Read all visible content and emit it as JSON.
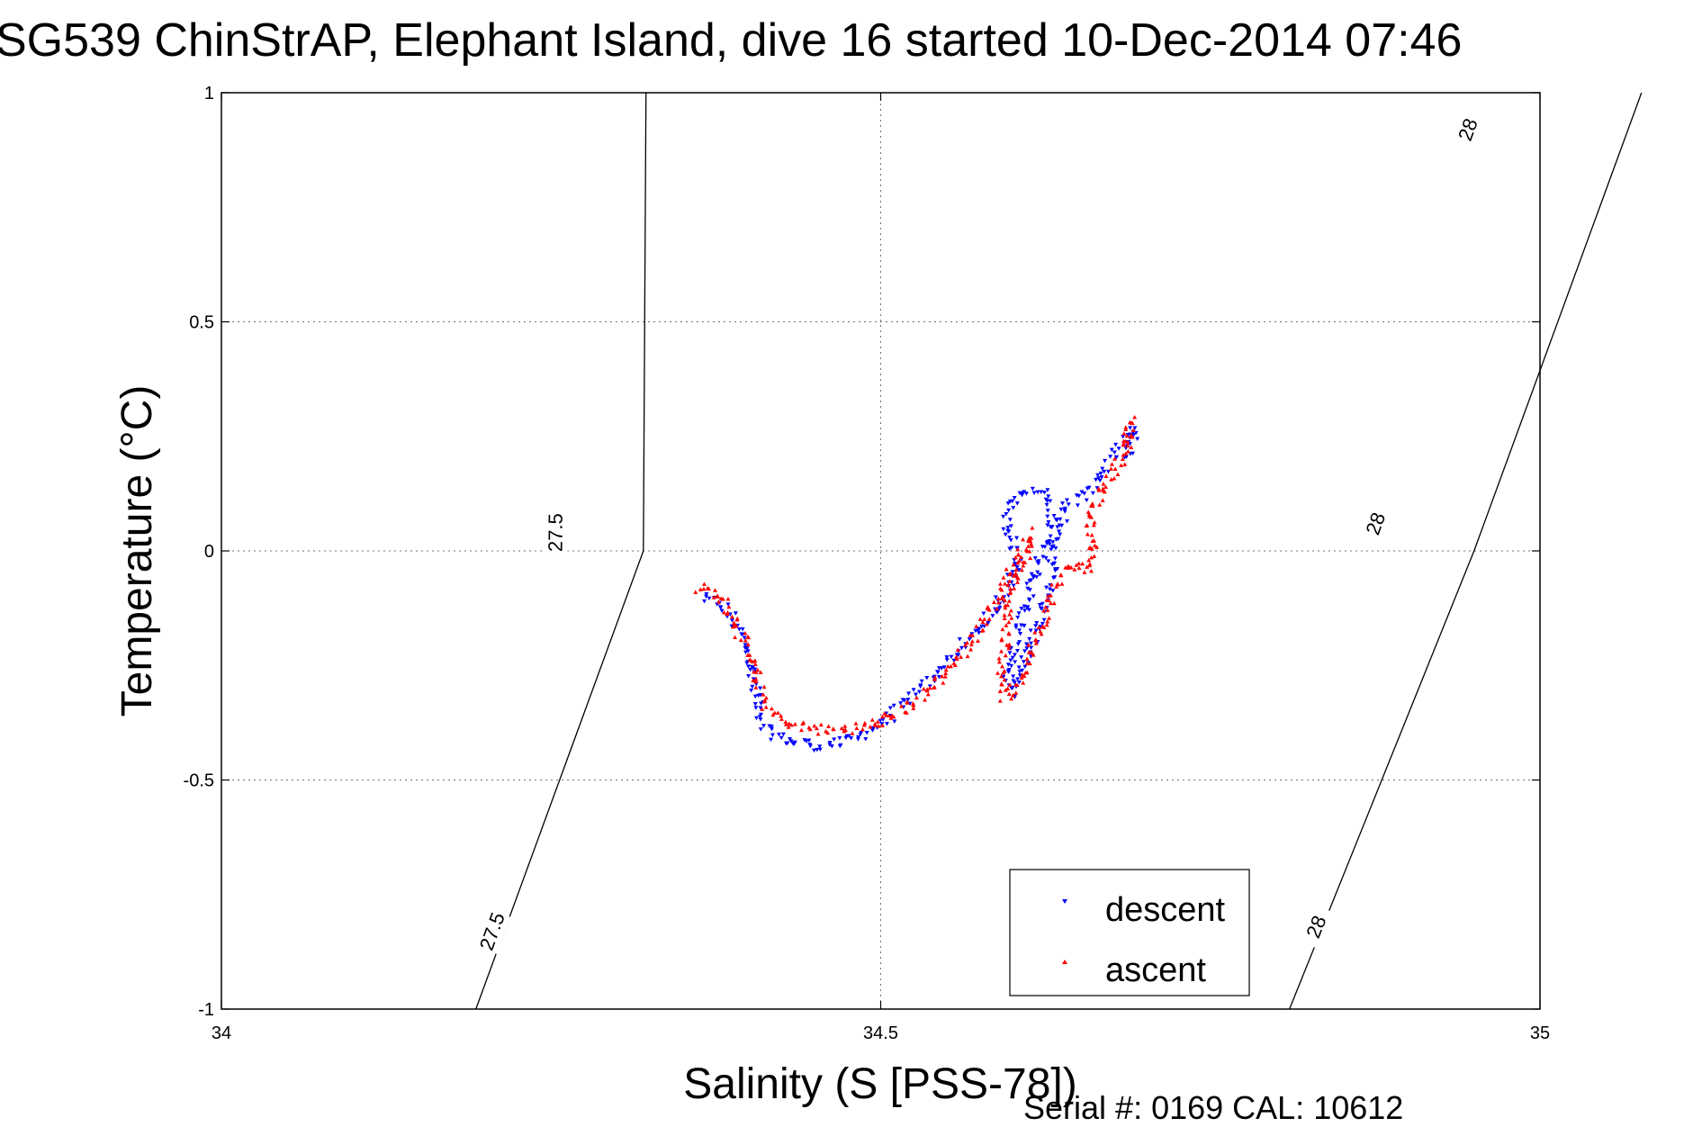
{
  "chart_data": {
    "type": "scatter",
    "title": "SG539 ChinStrAP, Elephant Island, dive 16 started 10-Dec-2014 07:46",
    "xlabel": "Salinity (S [PSS-78])",
    "ylabel": "Temperature (°C)",
    "xlim": [
      34,
      35
    ],
    "ylim": [
      -1,
      1
    ],
    "xticks": [
      "34",
      "34.5",
      "35"
    ],
    "yticks": [
      "-1",
      "-0.5",
      "0",
      "0.5",
      "1"
    ],
    "grid": true,
    "legend": "bottom-right",
    "footer": "Serial #: 0169 CAL: 10612",
    "contours": [
      {
        "label": "27.5",
        "points": [
          [
            34.193,
            -1.0
          ],
          [
            34.32,
            0.0
          ],
          [
            34.322,
            1.0
          ]
        ],
        "label_positions": [
          [
            34.205,
            -0.83
          ],
          [
            34.253,
            0.04
          ]
        ]
      },
      {
        "label": "28",
        "points": [
          [
            34.81,
            -1.0
          ],
          [
            34.95,
            0.0
          ],
          [
            35.077,
            1.0
          ]
        ],
        "label_positions": [
          [
            34.83,
            -0.82
          ],
          [
            34.875,
            0.06
          ],
          [
            34.945,
            0.92
          ]
        ]
      }
    ],
    "series": [
      {
        "name": "descent",
        "color": "#0000ff",
        "marker": "triangle-down",
        "path": [
          [
            34.365,
            -0.105
          ],
          [
            34.372,
            -0.11
          ],
          [
            34.38,
            -0.12
          ],
          [
            34.388,
            -0.15
          ],
          [
            34.395,
            -0.19
          ],
          [
            34.4,
            -0.23
          ],
          [
            34.404,
            -0.28
          ],
          [
            34.407,
            -0.33
          ],
          [
            34.41,
            -0.37
          ],
          [
            34.415,
            -0.395
          ],
          [
            34.425,
            -0.41
          ],
          [
            34.44,
            -0.42
          ],
          [
            34.455,
            -0.425
          ],
          [
            34.47,
            -0.42
          ],
          [
            34.483,
            -0.405
          ],
          [
            34.495,
            -0.385
          ],
          [
            34.505,
            -0.365
          ],
          [
            34.515,
            -0.34
          ],
          [
            34.525,
            -0.315
          ],
          [
            34.535,
            -0.29
          ],
          [
            34.545,
            -0.26
          ],
          [
            34.555,
            -0.23
          ],
          [
            34.565,
            -0.2
          ],
          [
            34.575,
            -0.17
          ],
          [
            34.585,
            -0.135
          ],
          [
            34.592,
            -0.1
          ],
          [
            34.6,
            -0.06
          ],
          [
            34.605,
            -0.02
          ],
          [
            34.6,
            0.03
          ],
          [
            34.595,
            0.07
          ],
          [
            34.6,
            0.11
          ],
          [
            34.61,
            0.125
          ],
          [
            34.62,
            0.13
          ],
          [
            34.628,
            0.11
          ],
          [
            34.63,
            0.07
          ],
          [
            34.625,
            0.02
          ],
          [
            34.618,
            -0.04
          ],
          [
            34.612,
            -0.1
          ],
          [
            34.606,
            -0.16
          ],
          [
            34.6,
            -0.22
          ],
          [
            34.597,
            -0.27
          ],
          [
            34.598,
            -0.31
          ],
          [
            34.603,
            -0.28
          ],
          [
            34.612,
            -0.22
          ],
          [
            34.62,
            -0.15
          ],
          [
            34.627,
            -0.08
          ],
          [
            34.632,
            -0.01
          ],
          [
            34.636,
            0.05
          ],
          [
            34.64,
            0.09
          ],
          [
            34.648,
            0.11
          ],
          [
            34.658,
            0.13
          ],
          [
            34.665,
            0.16
          ],
          [
            34.672,
            0.19
          ],
          [
            34.68,
            0.22
          ],
          [
            34.688,
            0.25
          ],
          [
            34.692,
            0.27
          ],
          [
            34.69,
            0.23
          ],
          [
            34.685,
            0.2
          ]
        ],
        "jitter": [
          0.004,
          0.012
        ]
      },
      {
        "name": "ascent",
        "color": "#ff0000",
        "marker": "triangle-up",
        "path": [
          [
            34.36,
            -0.08
          ],
          [
            34.372,
            -0.09
          ],
          [
            34.382,
            -0.11
          ],
          [
            34.39,
            -0.15
          ],
          [
            34.396,
            -0.2
          ],
          [
            34.403,
            -0.25
          ],
          [
            34.408,
            -0.3
          ],
          [
            34.414,
            -0.34
          ],
          [
            34.425,
            -0.37
          ],
          [
            34.44,
            -0.385
          ],
          [
            34.455,
            -0.39
          ],
          [
            34.47,
            -0.39
          ],
          [
            34.485,
            -0.385
          ],
          [
            34.5,
            -0.375
          ],
          [
            34.51,
            -0.36
          ],
          [
            34.52,
            -0.34
          ],
          [
            34.53,
            -0.32
          ],
          [
            34.54,
            -0.29
          ],
          [
            34.55,
            -0.26
          ],
          [
            34.56,
            -0.23
          ],
          [
            34.57,
            -0.19
          ],
          [
            34.58,
            -0.15
          ],
          [
            34.588,
            -0.11
          ],
          [
            34.596,
            -0.06
          ],
          [
            34.604,
            -0.03
          ],
          [
            34.61,
            -0.01
          ],
          [
            34.614,
            0.01
          ],
          [
            34.612,
            0.04
          ],
          [
            34.606,
            -0.02
          ],
          [
            34.598,
            -0.1
          ],
          [
            34.594,
            -0.19
          ],
          [
            34.592,
            -0.27
          ],
          [
            34.594,
            -0.32
          ],
          [
            34.6,
            -0.3
          ],
          [
            34.608,
            -0.26
          ],
          [
            34.615,
            -0.21
          ],
          [
            34.622,
            -0.16
          ],
          [
            34.628,
            -0.12
          ],
          [
            34.632,
            -0.08
          ],
          [
            34.636,
            -0.05
          ],
          [
            34.642,
            -0.035
          ],
          [
            34.65,
            -0.035
          ],
          [
            34.658,
            -0.04
          ],
          [
            34.66,
            -0.02
          ],
          [
            34.66,
            0.02
          ],
          [
            34.658,
            0.06
          ],
          [
            34.662,
            0.1
          ],
          [
            34.668,
            0.13
          ],
          [
            34.675,
            0.16
          ],
          [
            34.682,
            0.2
          ],
          [
            34.686,
            0.23
          ],
          [
            34.688,
            0.26
          ],
          [
            34.69,
            0.28
          ],
          [
            34.688,
            0.25
          ],
          [
            34.684,
            0.22
          ]
        ],
        "jitter": [
          0.004,
          0.012
        ]
      }
    ]
  }
}
